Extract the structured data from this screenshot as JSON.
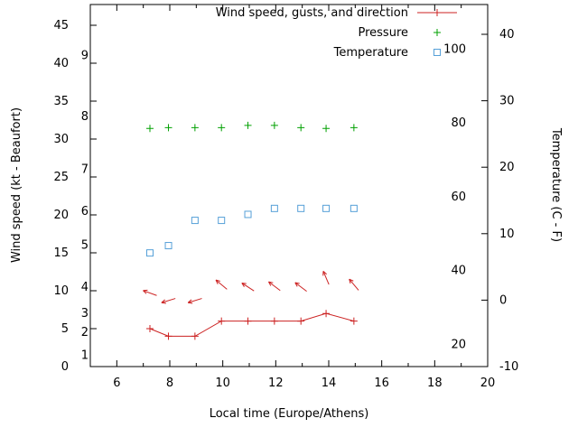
{
  "window": {
    "background": "#ffffff"
  },
  "chart_data": {
    "type": "line",
    "title": "",
    "xlabel": "Local time (Europe/Athens)",
    "ylabel": "Wind speed (kt - Beaufort)",
    "y2label": "Temperature (C - F)",
    "grid": false,
    "legend_position": "top-right-inside",
    "x_range": [
      5,
      20
    ],
    "x_major_ticks": [
      6,
      8,
      10,
      12,
      14,
      16,
      18,
      20
    ],
    "x_minor_step": 1,
    "y_left_unit": "kt",
    "y_left_range": [
      0,
      47.7
    ],
    "y_left_ticks": [
      0,
      5,
      10,
      15,
      20,
      25,
      30,
      35,
      40,
      45
    ],
    "beaufort_labels": [
      {
        "label": "1",
        "kt": 1.5
      },
      {
        "label": "2",
        "kt": 4.5
      },
      {
        "label": "3",
        "kt": 7
      },
      {
        "label": "4",
        "kt": 10.5
      },
      {
        "label": "5",
        "kt": 16
      },
      {
        "label": "6",
        "kt": 20.5
      },
      {
        "label": "7",
        "kt": 26
      },
      {
        "label": "8",
        "kt": 33
      },
      {
        "label": "9",
        "kt": 41
      }
    ],
    "y_right_unit": "C",
    "y_right_range": [
      -10,
      40
    ],
    "y_right_ticks": [
      -10,
      0,
      10,
      20,
      30,
      40
    ],
    "fahrenheit_labels": [
      {
        "label": "20",
        "f": 20
      },
      {
        "label": "40",
        "f": 40
      },
      {
        "label": "60",
        "f": 60
      },
      {
        "label": "80",
        "f": 80
      },
      {
        "label": "100",
        "f": 100
      }
    ],
    "colors": {
      "wind": "#cc2222",
      "pressure": "#00a000",
      "temperature": "#56a0d8",
      "axis": "#000000"
    },
    "series": [
      {
        "name": "Wind speed, gusts, and direction",
        "type": "line+plus",
        "axis": "left",
        "color": "#cc2222",
        "x": [
          7.25,
          7.95,
          8.95,
          9.95,
          10.95,
          11.95,
          12.95,
          13.9,
          14.95
        ],
        "values_kt": [
          5,
          4,
          4,
          6,
          6,
          6,
          6,
          7,
          6
        ]
      },
      {
        "name": "Wind gust direction arrows",
        "type": "arrows",
        "axis": "left",
        "color": "#cc2222",
        "x": [
          7.25,
          7.95,
          8.95,
          9.95,
          10.95,
          11.95,
          12.95,
          13.9,
          14.95
        ],
        "values_kt": [
          9.7,
          8.7,
          8.7,
          10.8,
          10.5,
          10.6,
          10.5,
          11.7,
          10.8
        ],
        "direction_deg": [
          160,
          197,
          197,
          140,
          147,
          143,
          143,
          113,
          130
        ]
      },
      {
        "name": "Pressure",
        "type": "plus",
        "axis": "left",
        "color": "#00a000",
        "x": [
          7.25,
          7.95,
          8.95,
          9.95,
          10.95,
          11.95,
          12.95,
          13.9,
          14.95
        ],
        "values_kt": [
          31.4,
          31.5,
          31.5,
          31.5,
          31.8,
          31.8,
          31.5,
          31.4,
          31.5
        ]
      },
      {
        "name": "Temperature",
        "type": "square",
        "axis": "right",
        "color": "#56a0d8",
        "x": [
          7.25,
          7.95,
          8.95,
          9.95,
          10.95,
          11.95,
          12.95,
          13.9,
          14.95
        ],
        "values_c": [
          7.1,
          8.2,
          12.0,
          12.0,
          12.9,
          13.8,
          13.8,
          13.8,
          13.8
        ]
      }
    ],
    "legend": [
      {
        "label": "Wind speed, gusts, and direction",
        "marker": "line-plus",
        "color": "#cc2222"
      },
      {
        "label": "Pressure",
        "marker": "plus",
        "color": "#00a000"
      },
      {
        "label": "Temperature",
        "marker": "square",
        "color": "#56a0d8"
      }
    ]
  }
}
